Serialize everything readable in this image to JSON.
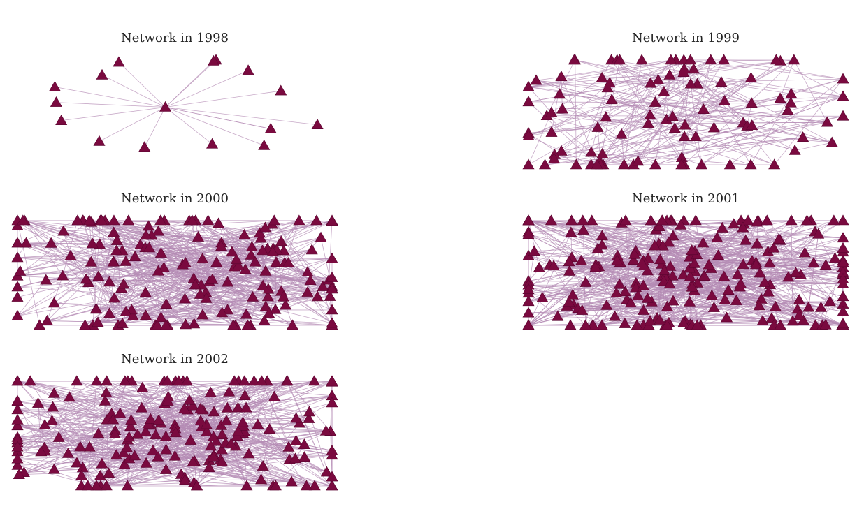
{
  "colors": {
    "node": "#7a0a3f",
    "node_stroke": "#5a0530",
    "edge": "#b48bb4"
  },
  "node_shape": "triangle",
  "panels": [
    {
      "title": "Network in 1998",
      "seed": 11,
      "nodes": 16,
      "edges": 16,
      "hub": true
    },
    {
      "title": "Network in 1999",
      "seed": 23,
      "nodes": 95,
      "edges": 210,
      "hub": false
    },
    {
      "title": "Network in 2000",
      "seed": 37,
      "nodes": 170,
      "edges": 520,
      "hub": false
    },
    {
      "title": "Network in 2001",
      "seed": 41,
      "nodes": 230,
      "edges": 650,
      "hub": false
    },
    {
      "title": "Network in 2002",
      "seed": 53,
      "nodes": 190,
      "edges": 560,
      "hub": false
    }
  ]
}
